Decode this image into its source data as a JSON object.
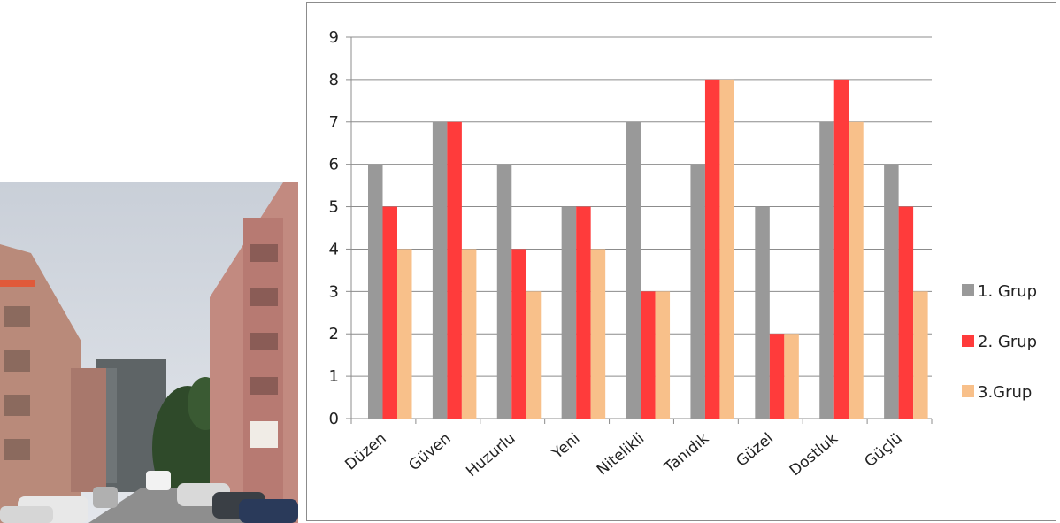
{
  "photo": {
    "subject": "apartment-street-photo"
  },
  "chart_data": {
    "type": "bar",
    "categories": [
      "Düzen",
      "Güven",
      "Huzurlu",
      "Yeni",
      "Nitelikli",
      "Tanıdık",
      "Güzel",
      "Dostluk",
      "Güçlü"
    ],
    "series": [
      {
        "name": "1. Grup",
        "color": "#999999",
        "values": [
          6,
          7,
          6,
          5,
          7,
          6,
          5,
          7,
          6
        ]
      },
      {
        "name": "2. Grup",
        "color": "#ff3b3b",
        "values": [
          5,
          7,
          4,
          5,
          3,
          8,
          2,
          8,
          5
        ]
      },
      {
        "name": "3.Grup",
        "color": "#f8c08a",
        "values": [
          4,
          4,
          3,
          4,
          3,
          8,
          2,
          7,
          3
        ]
      }
    ],
    "yticks": [
      "0",
      "1",
      "2",
      "3",
      "4",
      "5",
      "6",
      "7",
      "8",
      "9"
    ],
    "ylim": [
      0,
      9
    ],
    "grid": true,
    "legend_position": "right"
  }
}
